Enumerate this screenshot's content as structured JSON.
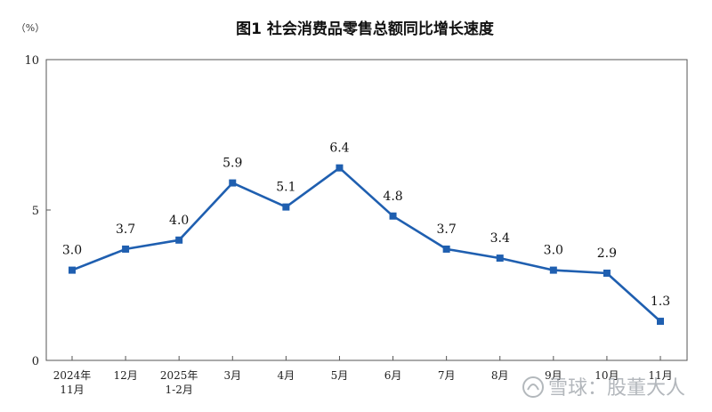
{
  "chart_data": {
    "type": "line",
    "title": "图1 社会消费品零售总额同比增长速度",
    "unit": "（%）",
    "categories": [
      [
        "2024年",
        "11月"
      ],
      [
        "12月"
      ],
      [
        "2025年",
        "1-2月"
      ],
      [
        "3月"
      ],
      [
        "4月"
      ],
      [
        "5月"
      ],
      [
        "6月"
      ],
      [
        "7月"
      ],
      [
        "8月"
      ],
      [
        "9月"
      ],
      [
        "10月"
      ],
      [
        "11月"
      ]
    ],
    "series": [
      {
        "values": [
          3.0,
          3.7,
          4.0,
          5.9,
          5.1,
          6.4,
          4.8,
          3.7,
          3.4,
          3.0,
          2.9,
          1.3
        ]
      }
    ],
    "data_labels": [
      "3.0",
      "3.7",
      "4.0",
      "5.9",
      "5.1",
      "6.4",
      "4.8",
      "3.7",
      "3.4",
      "3.0",
      "2.9",
      "1.3"
    ],
    "ylim": [
      0,
      10
    ],
    "yticks": [
      "0",
      "5",
      "10"
    ],
    "grid": false,
    "line_color": "#1f5fb0",
    "marker_color": "#1f5fb0"
  },
  "watermark": {
    "text": "雪球：股董大人"
  }
}
